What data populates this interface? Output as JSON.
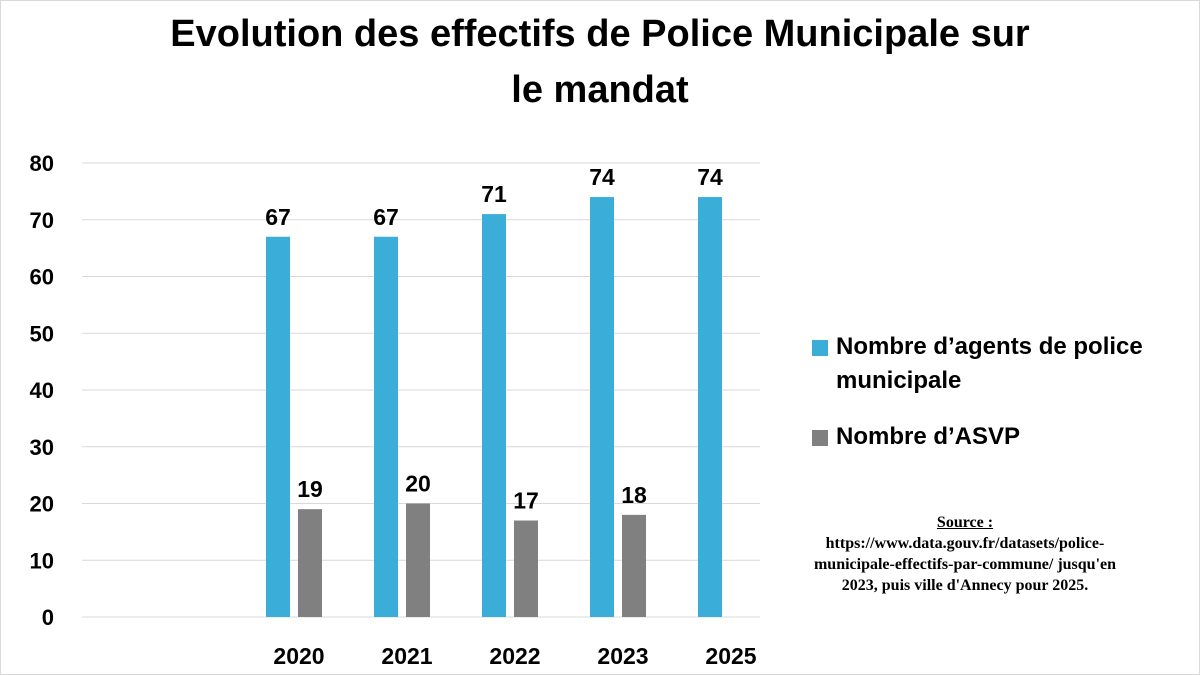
{
  "title_lines": [
    "Evolution des effectifs de Police Municipale sur",
    "le mandat"
  ],
  "legend": [
    {
      "label_lines": [
        "Nombre d’agents de police",
        "municipale"
      ],
      "color": "#3aaed8"
    },
    {
      "label_lines": [
        "Nombre d’ASVP"
      ],
      "color": "#808080"
    }
  ],
  "source": {
    "label": "Source :",
    "lines": [
      "https://www.data.gouv.fr/datasets/police-",
      "municipale-effectifs-par-commune/ jusqu'en",
      "2023, puis ville d'Annecy pour 2025."
    ]
  },
  "chart_data": {
    "type": "bar",
    "title": "Evolution des effectifs de Police Municipale sur le mandat",
    "categories": [
      "2020",
      "2021",
      "2022",
      "2023",
      "2025"
    ],
    "series": [
      {
        "name": "Nombre d’agents de police municipale",
        "values": [
          67,
          67,
          71,
          74,
          74
        ],
        "color": "#3aaed8"
      },
      {
        "name": "Nombre d’ASVP",
        "values": [
          19,
          20,
          17,
          18,
          null
        ],
        "color": "#808080"
      }
    ],
    "ylim": [
      0,
      80
    ],
    "yticks": [
      0,
      10,
      20,
      30,
      40,
      50,
      60,
      70,
      80
    ],
    "grid": true,
    "data_labels": true,
    "legend_position": "right"
  }
}
